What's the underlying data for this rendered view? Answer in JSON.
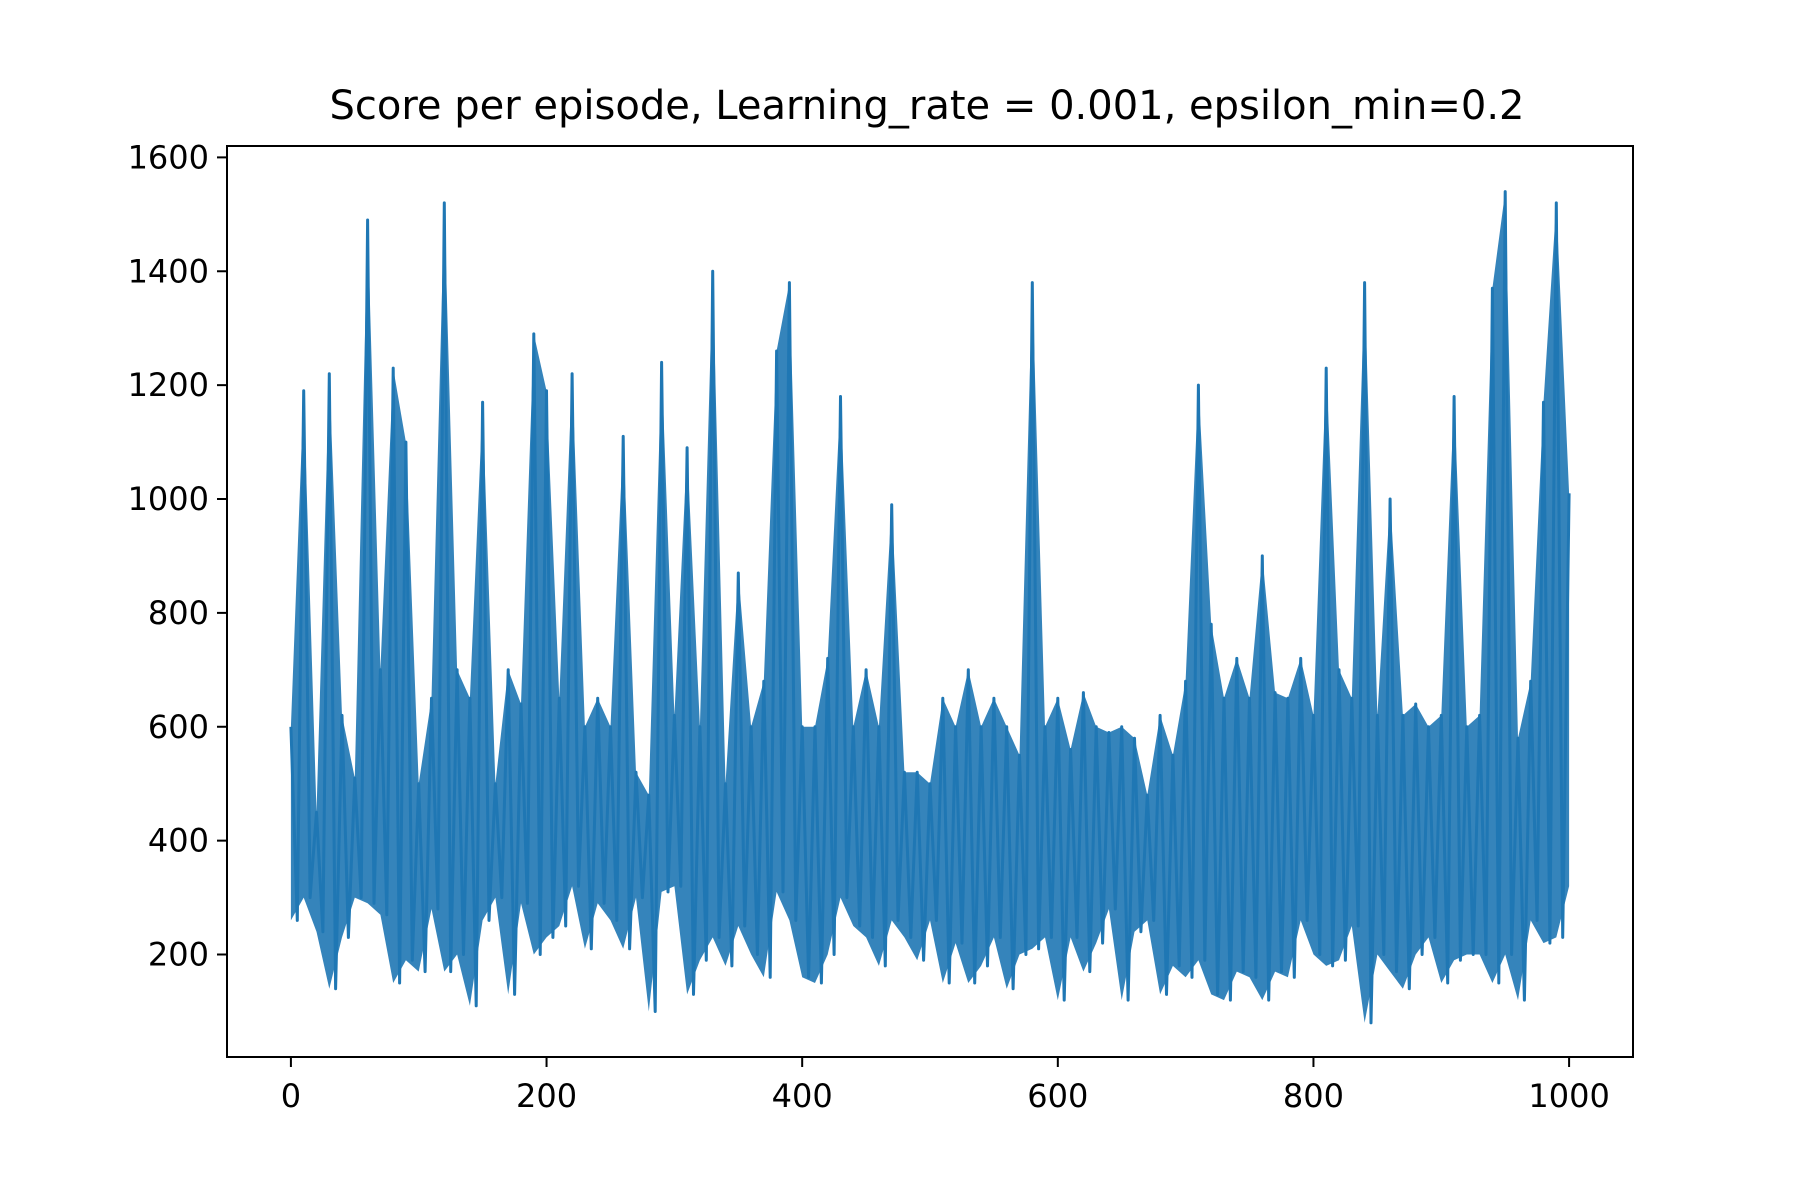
{
  "chart_data": {
    "type": "line",
    "title": "Score per episode, Learning_rate = 0.001, epsilon_min=0.2",
    "xlabel": "",
    "ylabel": "",
    "xlim": [
      -50,
      1050
    ],
    "ylim": [
      20,
      1620
    ],
    "x_ticks": [
      0,
      200,
      400,
      600,
      800,
      1000
    ],
    "y_ticks": [
      200,
      400,
      600,
      800,
      1000,
      1200,
      1400,
      1600
    ],
    "x_tick_labels": [
      "0",
      "200",
      "400",
      "600",
      "800",
      "1000"
    ],
    "y_tick_labels": [
      "200",
      "400",
      "600",
      "800",
      "1000",
      "1200",
      "1400",
      "1600"
    ],
    "grid": false,
    "legend": "none",
    "series_color": "#1f77b4",
    "series": [
      {
        "x_start": 0,
        "x_step": 10,
        "values": [
          600,
          1190,
          450,
          1220,
          620,
          510,
          1490,
          700,
          1230,
          1100,
          500,
          650,
          1520,
          700,
          650,
          1170,
          500,
          700,
          640,
          1290,
          1190,
          650,
          1220,
          600,
          650,
          600,
          1110,
          520,
          480,
          1240,
          620,
          1090,
          600,
          1400,
          500,
          870,
          600,
          680,
          1260,
          1380,
          600,
          600,
          720,
          1180,
          600,
          700,
          600,
          990,
          520,
          520,
          500,
          650,
          600,
          700,
          600,
          650,
          600,
          550,
          1380,
          600,
          650,
          560,
          660,
          600,
          590,
          600,
          580,
          480,
          620,
          550,
          680,
          1200,
          780,
          650,
          720,
          650,
          900,
          660,
          650,
          720,
          620,
          1230,
          700,
          650,
          1380,
          620,
          1000,
          620,
          640,
          600,
          620,
          1180,
          600,
          620,
          1370,
          1540,
          580,
          680,
          1170,
          1520,
          1010
        ],
        "band_low": [
          260,
          300,
          240,
          140,
          230,
          300,
          290,
          270,
          150,
          190,
          170,
          280,
          170,
          200,
          110,
          260,
          300,
          130,
          290,
          200,
          230,
          250,
          320,
          210,
          290,
          260,
          210,
          300,
          100,
          310,
          320,
          130,
          190,
          230,
          180,
          250,
          200,
          160,
          310,
          260,
          160,
          150,
          200,
          300,
          250,
          230,
          180,
          260,
          230,
          190,
          260,
          150,
          220,
          150,
          180,
          230,
          140,
          200,
          210,
          230,
          120,
          230,
          170,
          220,
          280,
          120,
          240,
          260,
          130,
          180,
          160,
          190,
          130,
          120,
          170,
          160,
          120,
          170,
          160,
          260,
          200,
          180,
          190,
          250,
          80,
          200,
          170,
          140,
          200,
          230,
          150,
          190,
          200,
          200,
          150,
          200,
          120,
          260,
          220,
          230,
          320
        ]
      }
    ]
  }
}
